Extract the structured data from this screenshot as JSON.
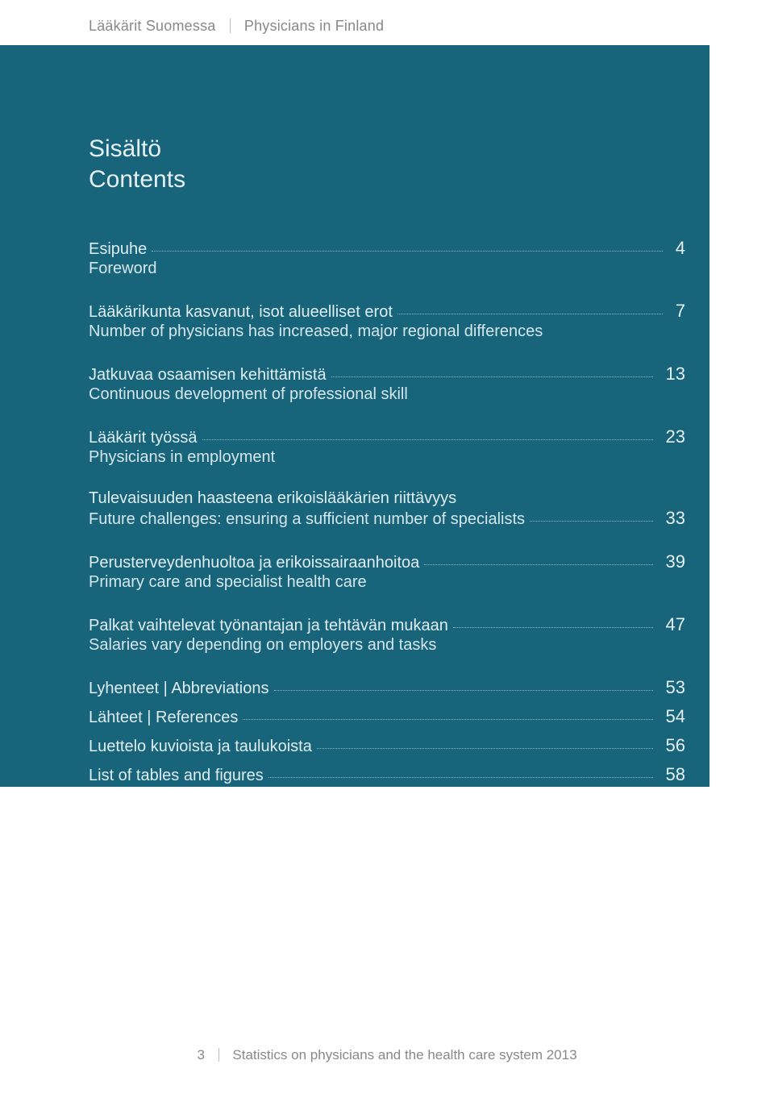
{
  "colors": {
    "band_bg": "#18647a",
    "text_light": "#e6f1f4",
    "text_light_dim": "rgba(223,238,242,0.7)",
    "dot": "rgba(223,238,242,0.6)",
    "running_head": "#888888",
    "page_bg": "#ffffff"
  },
  "running_head": {
    "left": "Lääkärit Suomessa",
    "right": "Physicians in Finland"
  },
  "heading": {
    "line1": "Sisältö",
    "line2": "Contents"
  },
  "toc": {
    "items": [
      {
        "fi": "Esipuhe",
        "en": "Foreword",
        "page": "4",
        "dots_on": "fi"
      },
      {
        "fi": "Lääkärikunta kasvanut, isot alueelliset erot",
        "en": "Number of physicians has increased, major regional differences",
        "page": "7",
        "dots_on": "fi"
      },
      {
        "fi": "Jatkuvaa osaamisen kehittämistä",
        "en": "Continuous development of professional skill",
        "page": "13",
        "dots_on": "fi"
      },
      {
        "fi": "Lääkärit työssä",
        "en": "Physicians in employment",
        "page": "23",
        "dots_on": "fi"
      },
      {
        "fi": "Tulevaisuuden haasteena erikoislääkärien riittävyys",
        "en": "Future challenges: ensuring a sufficient number of specialists",
        "page": "33",
        "dots_on": "en"
      },
      {
        "fi": "Perusterveydenhuoltoa ja erikoissairaanhoitoa",
        "en": "Primary care and specialist health care",
        "page": "39",
        "dots_on": "fi"
      },
      {
        "fi": "Palkat vaihtelevat työnantajan ja tehtävän mukaan",
        "en": "Salaries vary depending on employers and tasks",
        "page": "47",
        "dots_on": "fi"
      }
    ],
    "back": [
      {
        "label": "Lyhenteet | Abbreviations",
        "page": "53"
      },
      {
        "label": "Lähteet | References",
        "page": "54"
      },
      {
        "label": "Luettelo kuvioista ja taulukoista",
        "page": "56"
      },
      {
        "label": "List of tables and figures",
        "page": "58"
      }
    ]
  },
  "footer": {
    "page_num": "3",
    "text": "Statistics on physicians and the health care system 2013"
  }
}
